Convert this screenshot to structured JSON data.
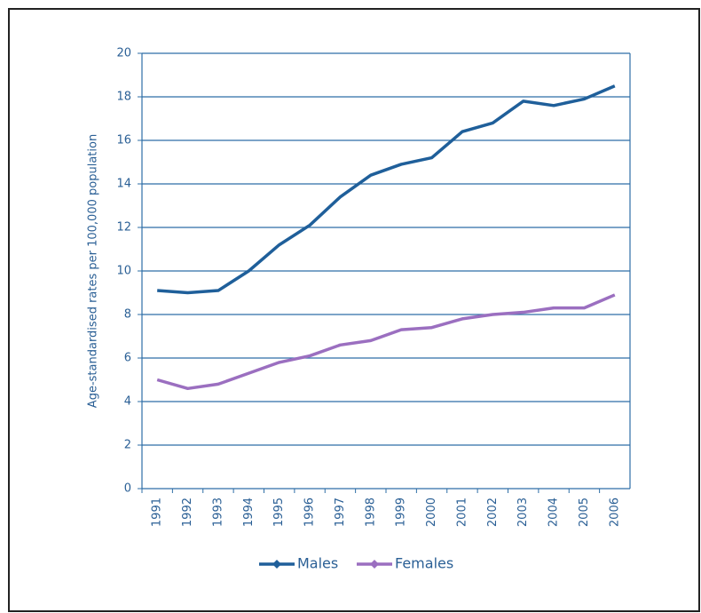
{
  "chart_data": {
    "type": "line",
    "y_label": "Age-standardised rates per 100,000 population",
    "categories": [
      "1991",
      "1992",
      "1993",
      "1994",
      "1995",
      "1996",
      "1997",
      "1998",
      "1999",
      "2000",
      "2001",
      "2002",
      "2003",
      "2004",
      "2005",
      "2006"
    ],
    "series": [
      {
        "name": "Males",
        "color": "#1f5f9a",
        "values": [
          9.1,
          9.0,
          9.1,
          10.0,
          11.2,
          12.1,
          13.4,
          14.4,
          14.9,
          15.2,
          16.4,
          16.8,
          17.8,
          17.6,
          17.9,
          18.5
        ]
      },
      {
        "name": "Females",
        "color": "#9b6fc0",
        "values": [
          5.0,
          4.6,
          4.8,
          5.3,
          5.8,
          6.1,
          6.6,
          6.8,
          7.3,
          7.4,
          7.8,
          8.0,
          8.1,
          8.3,
          8.3,
          8.9
        ]
      }
    ],
    "ylim": [
      0,
      20
    ],
    "yticks": [
      0,
      2,
      4,
      6,
      8,
      10,
      12,
      14,
      16,
      18,
      20
    ],
    "grid": true,
    "legend": "bottom"
  }
}
